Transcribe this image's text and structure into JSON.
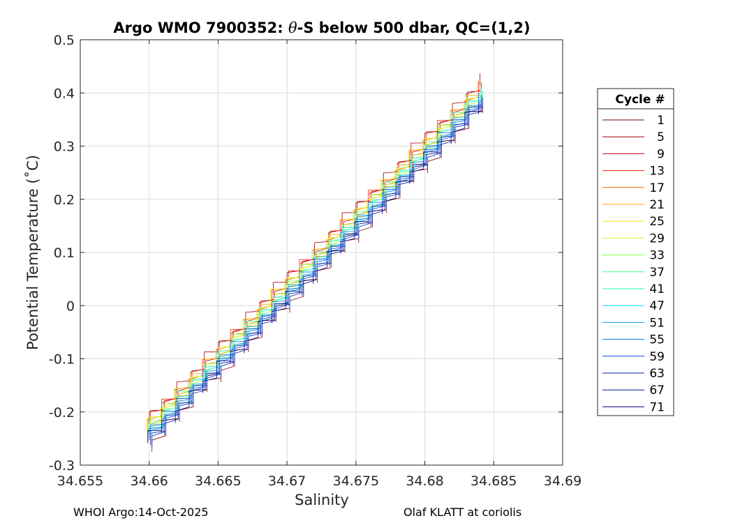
{
  "chart_data": {
    "type": "line",
    "title_prefix": "Argo WMO 7900352: ",
    "title_theta": "θ",
    "title_suffix": "-S below 500 dbar,  QC=(1,2)",
    "xlabel": "Salinity",
    "ylabel": "Potential Temperature (˚C)",
    "xlim": [
      34.655,
      34.69
    ],
    "ylim": [
      -0.3,
      0.5
    ],
    "xticks": [
      "34.655",
      "34.66",
      "34.665",
      "34.67",
      "34.675",
      "34.68",
      "34.685",
      "34.69"
    ],
    "yticks": [
      "-0.3",
      "-0.2",
      "-0.1",
      "0",
      "0.1",
      "0.2",
      "0.3",
      "0.4",
      "0.5"
    ],
    "grid": true,
    "legend": {
      "title": "Cycle #",
      "position": "right",
      "entries": [
        {
          "label": "1",
          "color": "#800000"
        },
        {
          "label": "5",
          "color": "#a00000"
        },
        {
          "label": "9",
          "color": "#d00000"
        },
        {
          "label": "13",
          "color": "#ff2000"
        },
        {
          "label": "17",
          "color": "#ff6000"
        },
        {
          "label": "21",
          "color": "#ffa000"
        },
        {
          "label": "25",
          "color": "#ffe000"
        },
        {
          "label": "29",
          "color": "#c0ff20"
        },
        {
          "label": "33",
          "color": "#80ff40"
        },
        {
          "label": "37",
          "color": "#40ff80"
        },
        {
          "label": "41",
          "color": "#20ffc0"
        },
        {
          "label": "47",
          "color": "#00e0ff"
        },
        {
          "label": "51",
          "color": "#00a0ff"
        },
        {
          "label": "55",
          "color": "#0070f0"
        },
        {
          "label": "59",
          "color": "#0040e0"
        },
        {
          "label": "63",
          "color": "#0020b0"
        },
        {
          "label": "67",
          "color": "#001090"
        },
        {
          "label": "71",
          "color": "#000080"
        }
      ]
    },
    "series_trend": {
      "x": [
        34.66,
        34.685
      ],
      "y": [
        -0.235,
        0.42
      ]
    },
    "series": [
      {
        "name": "1",
        "color": "#800000",
        "dx": 0.0002,
        "dy": -0.02
      },
      {
        "name": "5",
        "color": "#a00000",
        "dx": 0.0,
        "dy": 0.025
      },
      {
        "name": "9",
        "color": "#d00000",
        "dx": 0.0001,
        "dy": 0.02
      },
      {
        "name": "13",
        "color": "#ff2000",
        "dx": -0.0001,
        "dy": 0.015
      },
      {
        "name": "17",
        "color": "#ff6000",
        "dx": 0.0001,
        "dy": -0.005
      },
      {
        "name": "21",
        "color": "#ffa000",
        "dx": 0.0,
        "dy": 0.01
      },
      {
        "name": "25",
        "color": "#ffe000",
        "dx": -0.0002,
        "dy": 0.012
      },
      {
        "name": "29",
        "color": "#c0ff20",
        "dx": 0.0001,
        "dy": 0.008
      },
      {
        "name": "33",
        "color": "#80ff40",
        "dx": 0.0,
        "dy": 0.006
      },
      {
        "name": "37",
        "color": "#40ff80",
        "dx": -0.0001,
        "dy": 0.004
      },
      {
        "name": "41",
        "color": "#20ffc0",
        "dx": 0.0002,
        "dy": 0.0
      },
      {
        "name": "47",
        "color": "#00e0ff",
        "dx": 0.0,
        "dy": -0.003
      },
      {
        "name": "51",
        "color": "#00a0ff",
        "dx": 0.0001,
        "dy": -0.006
      },
      {
        "name": "55",
        "color": "#0070f0",
        "dx": -0.0001,
        "dy": -0.008
      },
      {
        "name": "59",
        "color": "#0040e0",
        "dx": 0.0,
        "dy": -0.01
      },
      {
        "name": "63",
        "color": "#0020b0",
        "dx": 0.0002,
        "dy": -0.012
      },
      {
        "name": "67",
        "color": "#001090",
        "dx": 0.0001,
        "dy": -0.015
      },
      {
        "name": "71",
        "color": "#000080",
        "dx": -0.0001,
        "dy": -0.018
      }
    ]
  },
  "footer": {
    "left": "WHOI Argo:14-Oct-2025",
    "right": "Olaf KLATT at coriolis"
  }
}
